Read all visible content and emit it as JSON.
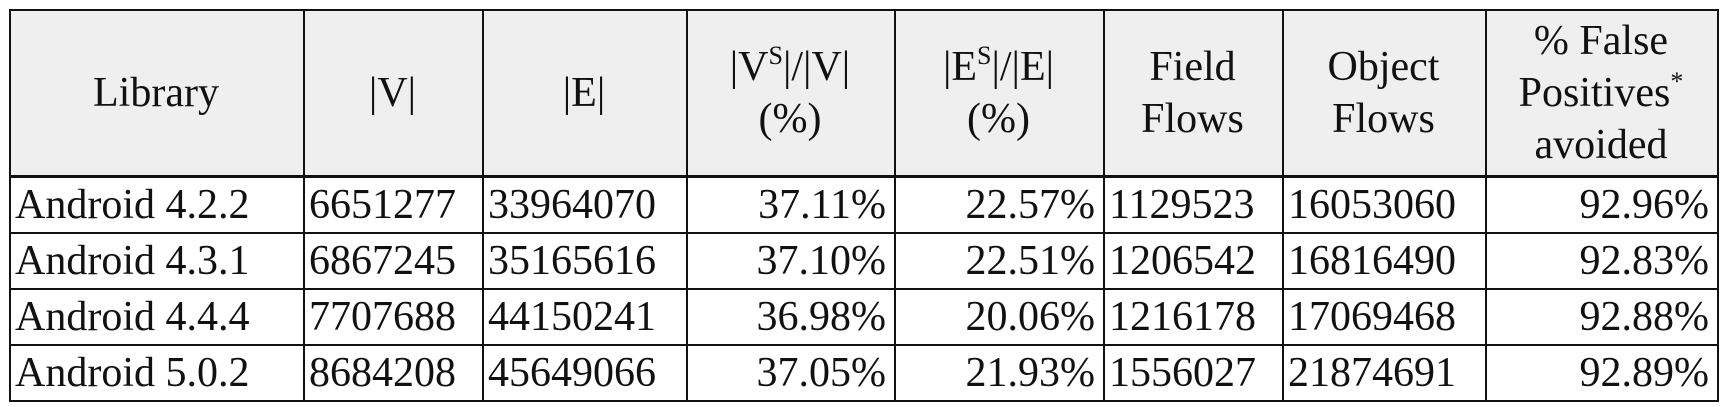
{
  "table": {
    "header": [
      [
        [
          "Library"
        ]
      ],
      [
        [
          "|V|"
        ]
      ],
      [
        [
          "|E|"
        ]
      ],
      [
        [
          "|V",
          {
            "sup": "S"
          },
          "|/|V|"
        ],
        [
          "(%)"
        ]
      ],
      [
        [
          "|E",
          {
            "sup": "S"
          },
          "|/|E|"
        ],
        [
          "(%)"
        ]
      ],
      [
        [
          "Field"
        ],
        [
          "Flows"
        ]
      ],
      [
        [
          "Object"
        ],
        [
          "Flows"
        ]
      ],
      [
        [
          "% False"
        ],
        [
          "Positives",
          {
            "sup": "*"
          }
        ],
        [
          "avoided"
        ]
      ]
    ],
    "rows": [
      [
        "Android 4.2.2",
        "6651277",
        "33964070",
        "37.11%",
        "22.57%",
        "1129523",
        "16053060",
        "92.96%"
      ],
      [
        "Android 4.3.1",
        "6867245",
        "35165616",
        "37.10%",
        "22.51%",
        "1206542",
        "16816490",
        "92.83%"
      ],
      [
        "Android 4.4.4",
        "7707688",
        "44150241",
        "36.98%",
        "20.06%",
        "1216178",
        "17069468",
        "92.88%"
      ],
      [
        "Android 5.0.2",
        "8684208",
        "45649066",
        "37.05%",
        "21.93%",
        "1556027",
        "21874691",
        "92.89%"
      ]
    ]
  }
}
